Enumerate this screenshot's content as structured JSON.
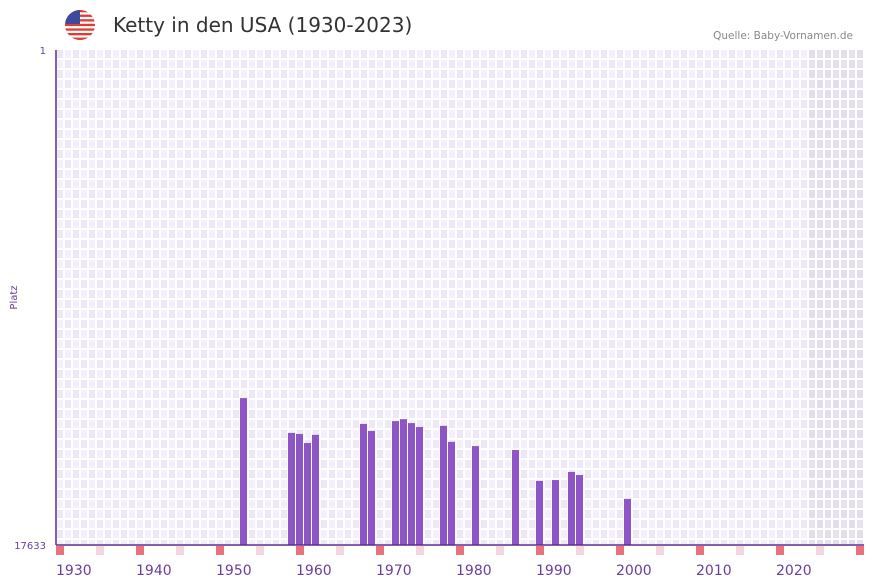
{
  "header": {
    "title": "Ketty in den USA (1930-2023)",
    "source": "Quelle: Baby-Vornamen.de",
    "flag_icon": "usa-flag-icon"
  },
  "colors": {
    "bar": "#8e55c6",
    "axis": "#5b2d8e",
    "label": "#6a3ea1",
    "decade_marker": "#e8737c",
    "half_decade_marker": "#f3d6df",
    "future_shade": "#e3dfec"
  },
  "chart_data": {
    "type": "bar",
    "title": "Ketty in den USA (1930-2023)",
    "xlabel": "",
    "ylabel": "Platz",
    "x_range": [
      1930,
      2030
    ],
    "data_range": [
      1930,
      2023
    ],
    "y_range": [
      1,
      17633
    ],
    "y_inverted": true,
    "y_ticks": [
      "1",
      "17633"
    ],
    "x_ticks": [
      "1930",
      "1940",
      "1950",
      "1960",
      "1970",
      "1980",
      "1990",
      "2000",
      "2010",
      "2020"
    ],
    "grid": true,
    "points": [
      {
        "year": 1953,
        "rank": 12400
      },
      {
        "year": 1959,
        "rank": 13640
      },
      {
        "year": 1960,
        "rank": 13680
      },
      {
        "year": 1961,
        "rank": 14000
      },
      {
        "year": 1962,
        "rank": 13710
      },
      {
        "year": 1968,
        "rank": 13320
      },
      {
        "year": 1969,
        "rank": 13570
      },
      {
        "year": 1972,
        "rank": 13220
      },
      {
        "year": 1973,
        "rank": 13150
      },
      {
        "year": 1974,
        "rank": 13290
      },
      {
        "year": 1975,
        "rank": 13430
      },
      {
        "year": 1978,
        "rank": 13390
      },
      {
        "year": 1979,
        "rank": 13960
      },
      {
        "year": 1982,
        "rank": 14110
      },
      {
        "year": 1987,
        "rank": 14250
      },
      {
        "year": 1990,
        "rank": 15350
      },
      {
        "year": 1992,
        "rank": 15320
      },
      {
        "year": 1994,
        "rank": 15030
      },
      {
        "year": 1995,
        "rank": 15140
      },
      {
        "year": 2001,
        "rank": 15990
      }
    ]
  }
}
